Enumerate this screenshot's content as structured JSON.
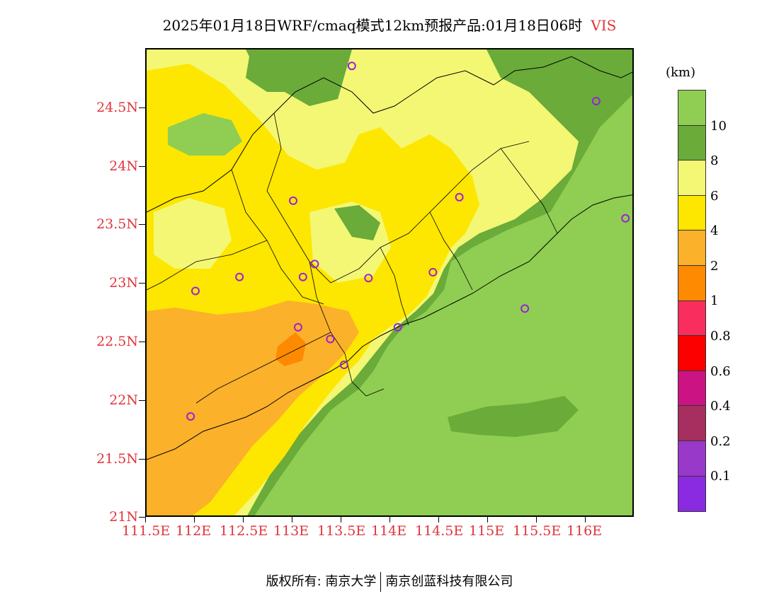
{
  "title": {
    "main": "2025年01月18日WRF/cmaq模式12km预报产品:01月18日06时",
    "variable": "VIS"
  },
  "axes": {
    "y_labels": [
      "24.5N",
      "24N",
      "23.5N",
      "23N",
      "22.5N",
      "22N",
      "21.5N",
      "21N"
    ],
    "x_labels": [
      "111.5E",
      "112E",
      "112.5E",
      "113E",
      "113.5E",
      "114E",
      "114.5E",
      "115E",
      "115.5E",
      "116E"
    ]
  },
  "colorbar": {
    "unit": "(km)",
    "levels": [
      "10",
      "8",
      "6",
      "4",
      "2",
      "1",
      "0.8",
      "0.6",
      "0.4",
      "0.2",
      "0.1"
    ],
    "colors": [
      "#8fce52",
      "#6aab39",
      "#f3f774",
      "#fde600",
      "#fbb12a",
      "#fd8a00",
      "#f92e5e",
      "#fc0000",
      "#cc1383",
      "#a62f60",
      "#9939c9",
      "#8a2be2"
    ]
  },
  "stations": [
    {
      "lon": 113.6,
      "lat": 24.85
    },
    {
      "lon": 116.1,
      "lat": 24.55
    },
    {
      "lon": 113.0,
      "lat": 23.7
    },
    {
      "lon": 114.7,
      "lat": 23.73
    },
    {
      "lon": 116.4,
      "lat": 23.55
    },
    {
      "lon": 112.0,
      "lat": 22.93
    },
    {
      "lon": 112.45,
      "lat": 23.05
    },
    {
      "lon": 113.1,
      "lat": 23.05
    },
    {
      "lon": 113.22,
      "lat": 23.16
    },
    {
      "lon": 113.77,
      "lat": 23.04
    },
    {
      "lon": 114.43,
      "lat": 23.09
    },
    {
      "lon": 115.37,
      "lat": 22.78
    },
    {
      "lon": 113.05,
      "lat": 22.62
    },
    {
      "lon": 114.07,
      "lat": 22.62
    },
    {
      "lon": 113.38,
      "lat": 22.52
    },
    {
      "lon": 113.52,
      "lat": 22.3
    },
    {
      "lon": 111.95,
      "lat": 21.86
    }
  ],
  "footer": {
    "left": "版权所有: 南京大学",
    "right": "南京创蓝科技有限公司"
  }
}
